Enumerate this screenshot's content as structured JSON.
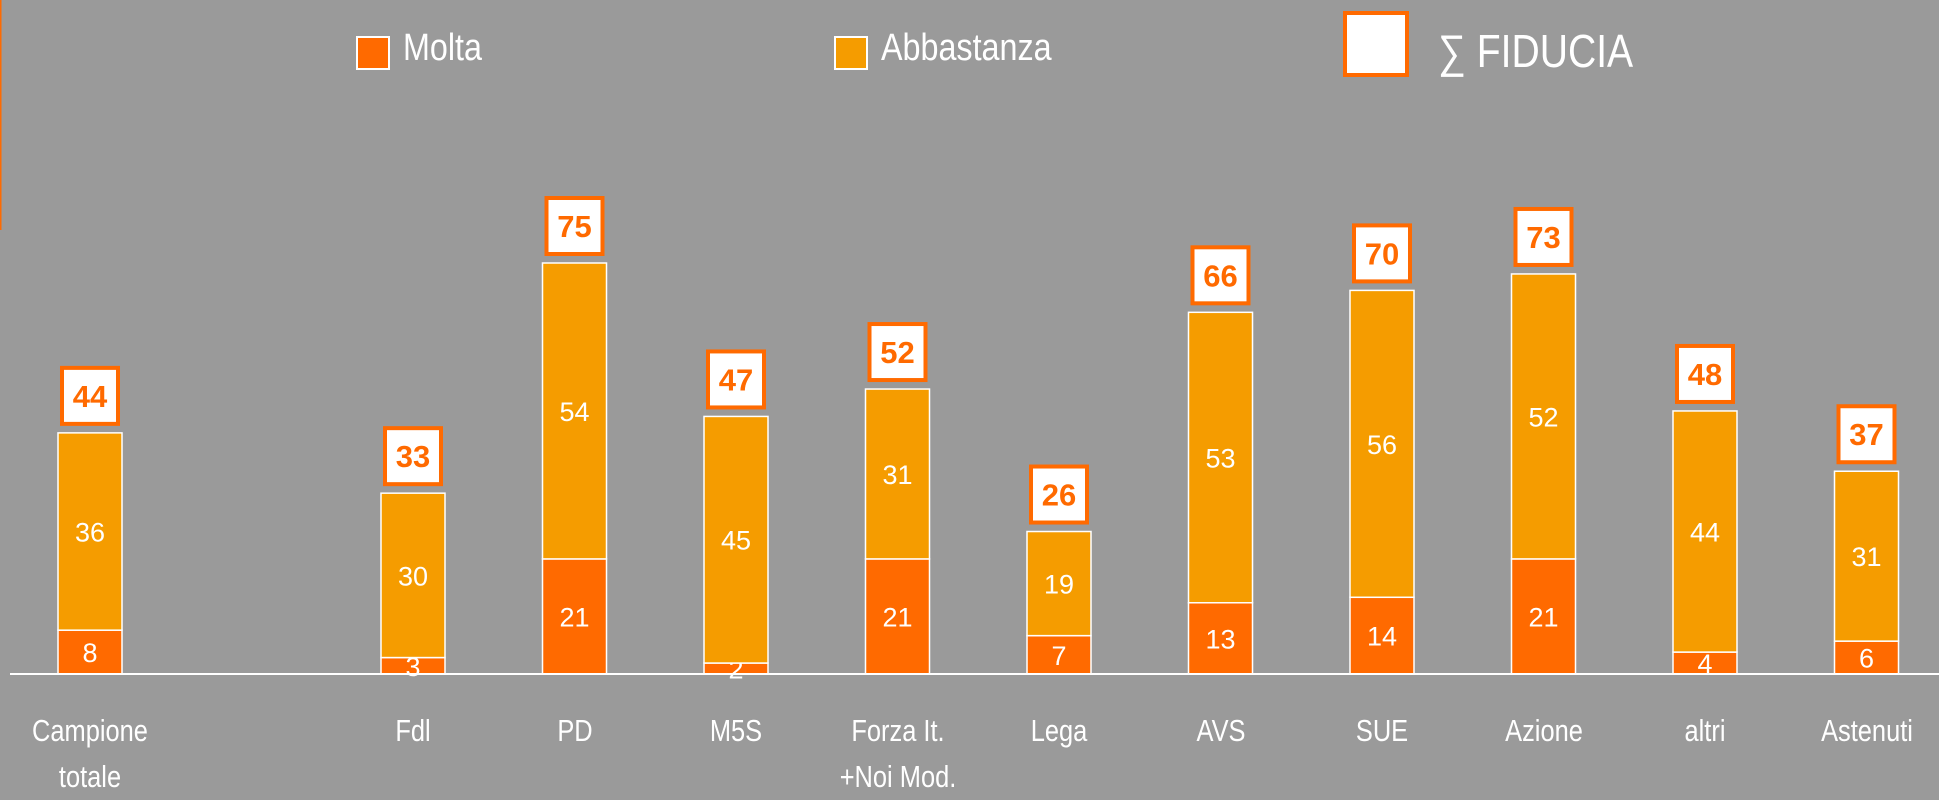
{
  "chart_data": {
    "type": "stacked_bar",
    "categories": [
      "Campione\ntotale",
      "Fdl",
      "PD",
      "M5S",
      "Forza It.\n+Noi Mod.",
      "Lega",
      "AVS",
      "SUE",
      "Azione",
      "altri",
      "Astenuti"
    ],
    "series": [
      {
        "name": "Molta",
        "color": "#ff6a00",
        "values": [
          8,
          3,
          21,
          2,
          21,
          7,
          13,
          14,
          21,
          4,
          6
        ]
      },
      {
        "name": "Abbastanza",
        "color": "#f59c00",
        "values": [
          36,
          30,
          54,
          45,
          31,
          19,
          53,
          56,
          52,
          44,
          31
        ]
      }
    ],
    "totals": {
      "name": "∑ FIDUCIA",
      "color": "#ff6a00",
      "values": [
        44,
        33,
        75,
        47,
        52,
        26,
        66,
        70,
        73,
        48,
        37
      ]
    }
  }
}
